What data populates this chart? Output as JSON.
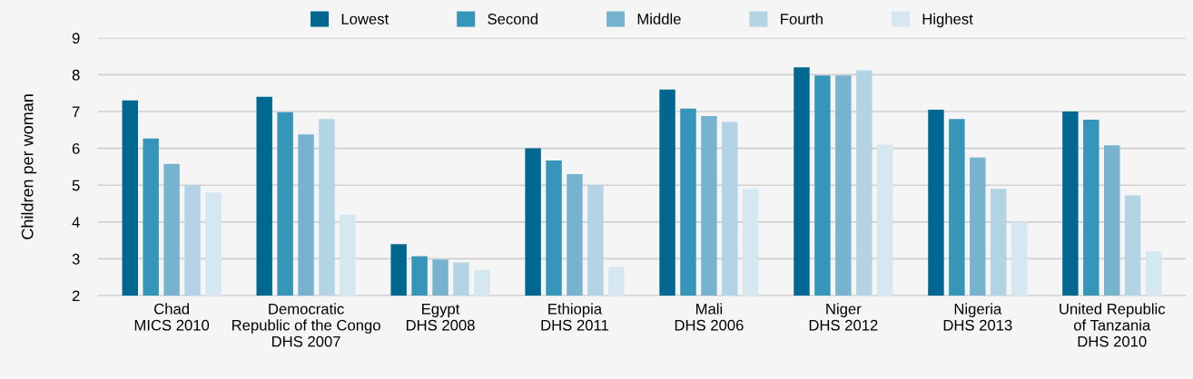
{
  "chart_data": {
    "type": "bar",
    "ylabel": "Children per woman",
    "categories": [
      "Chad\nMICS 2010",
      "Democratic\nRepublic of the Congo\nDHS 2007",
      "Egypt\nDHS 2008",
      "Ethiopia\nDHS 2011",
      "Mali\nDHS 2006",
      "Niger\nDHS 2012",
      "Nigeria\nDHS 2013",
      "United Republic\nof Tanzania\nDHS 2010"
    ],
    "series": [
      {
        "name": "Lowest",
        "color": "#006890",
        "values": [
          7.3,
          7.4,
          3.4,
          6.0,
          7.6,
          8.2,
          7.05,
          7.0
        ]
      },
      {
        "name": "Second",
        "color": "#3596ba",
        "values": [
          6.27,
          6.98,
          3.07,
          5.67,
          7.08,
          7.98,
          6.8,
          6.78
        ]
      },
      {
        "name": "Middle",
        "color": "#77b3cf",
        "values": [
          5.58,
          6.38,
          2.98,
          5.3,
          6.88,
          7.98,
          5.75,
          6.08
        ]
      },
      {
        "name": "Fourth",
        "color": "#b3d4e5",
        "values": [
          5.0,
          6.8,
          2.9,
          5.0,
          6.72,
          8.12,
          4.9,
          4.72
        ]
      },
      {
        "name": "Highest",
        "color": "#d5e7f1",
        "values": [
          4.8,
          4.2,
          2.7,
          2.78,
          4.9,
          6.1,
          4.0,
          3.2
        ]
      }
    ],
    "ylim": [
      2,
      9
    ],
    "yticks": [
      2,
      3,
      4,
      5,
      6,
      7,
      8,
      9
    ],
    "grid": "y",
    "legend": "top"
  }
}
